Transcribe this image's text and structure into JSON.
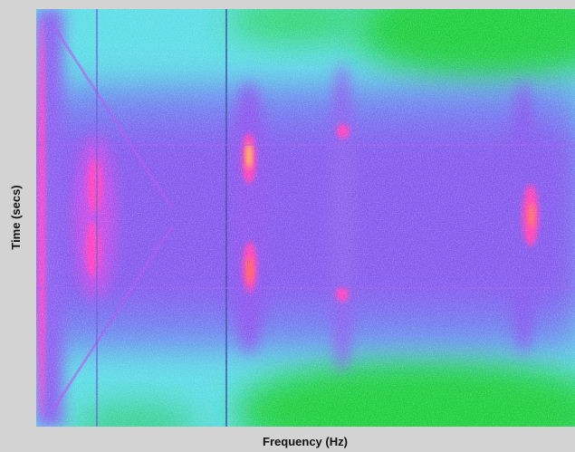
{
  "chart_data": {
    "type": "spectrogram",
    "xlabel": "Frequency (Hz)",
    "ylabel": "Time (secs)"
  }
}
